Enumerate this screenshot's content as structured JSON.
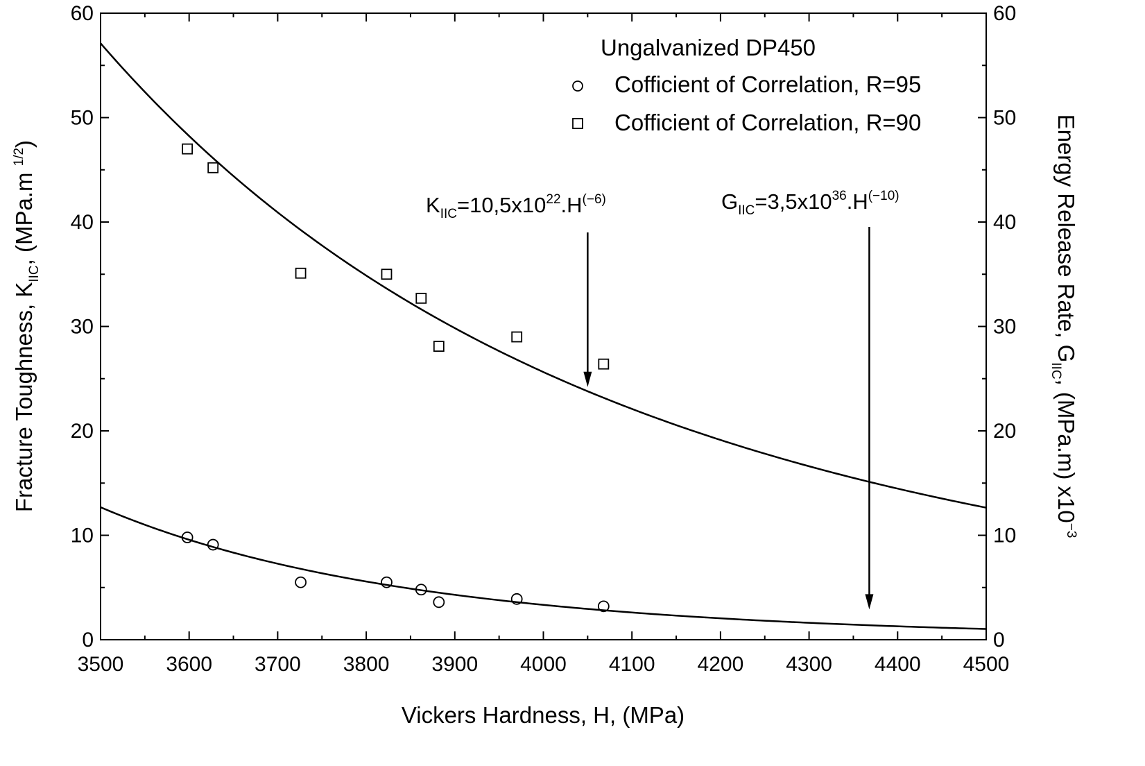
{
  "chart_data": {
    "type": "scatter",
    "title": "",
    "xlabel": "Vickers Hardness, H, (MPa)",
    "ylabel": {
      "main": "Fracture Toughness, K",
      "sub": "IIC",
      "unit_pre": ", (MPa.m ",
      "unit_sup": "1/2",
      "unit_post": ")"
    },
    "ylabel_right": {
      "main": "Energy Release Rate, G",
      "sub": "IIC",
      "unit": ", (MPa.m) x10",
      "exp": "−3"
    },
    "xlim": [
      3500,
      4500
    ],
    "ylim": [
      0,
      60
    ],
    "ylim_right": [
      0,
      60
    ],
    "x_ticks": [
      3500,
      3600,
      3700,
      3800,
      3900,
      4000,
      4100,
      4200,
      4300,
      4400,
      4500
    ],
    "y_ticks": [
      0,
      10,
      20,
      30,
      40,
      50,
      60
    ],
    "y_ticks_right": [
      0,
      10,
      20,
      30,
      40,
      50,
      60
    ],
    "grid": false,
    "legend": {
      "placement": "top-right",
      "title": "Ungalvanized DP450",
      "entries": [
        {
          "marker": "circle",
          "label": "Cofficient of Correlation, R=95"
        },
        {
          "marker": "square",
          "label": "Cofficient of Correlation, R=90"
        }
      ]
    },
    "series": [
      {
        "marker": "square",
        "x": [
          3598,
          3627,
          3726,
          3823,
          3862,
          3882,
          3970,
          4068
        ],
        "y": [
          47.0,
          45.2,
          35.1,
          35.0,
          32.7,
          28.1,
          29.0,
          26.4
        ]
      },
      {
        "marker": "circle",
        "x": [
          3598,
          3627,
          3726,
          3823,
          3862,
          3882,
          3970,
          4068
        ],
        "y": [
          9.8,
          9.1,
          5.5,
          5.5,
          4.8,
          3.6,
          3.9,
          3.2
        ]
      }
    ],
    "fit_curves": [
      {
        "form": "power",
        "coef": 1.05e+23,
        "exponent": -6
      },
      {
        "form": "power",
        "coef": 3.5e+36,
        "exponent": -10
      }
    ],
    "annotations": [
      {
        "base": "K",
        "sub": "IIC",
        "text": "=10,5x10",
        "sup1": "22",
        "mid": ".H",
        "sup2": "(−6)",
        "arrow_x": 4050,
        "arrow_to_y": 24.2
      },
      {
        "base": "G",
        "sub": "IIC",
        "text": "=3,5x10",
        "sup1": "36",
        "mid": ".H",
        "sup2": "(−10)",
        "arrow_x": 4368,
        "arrow_to_y": 2.9
      }
    ]
  }
}
